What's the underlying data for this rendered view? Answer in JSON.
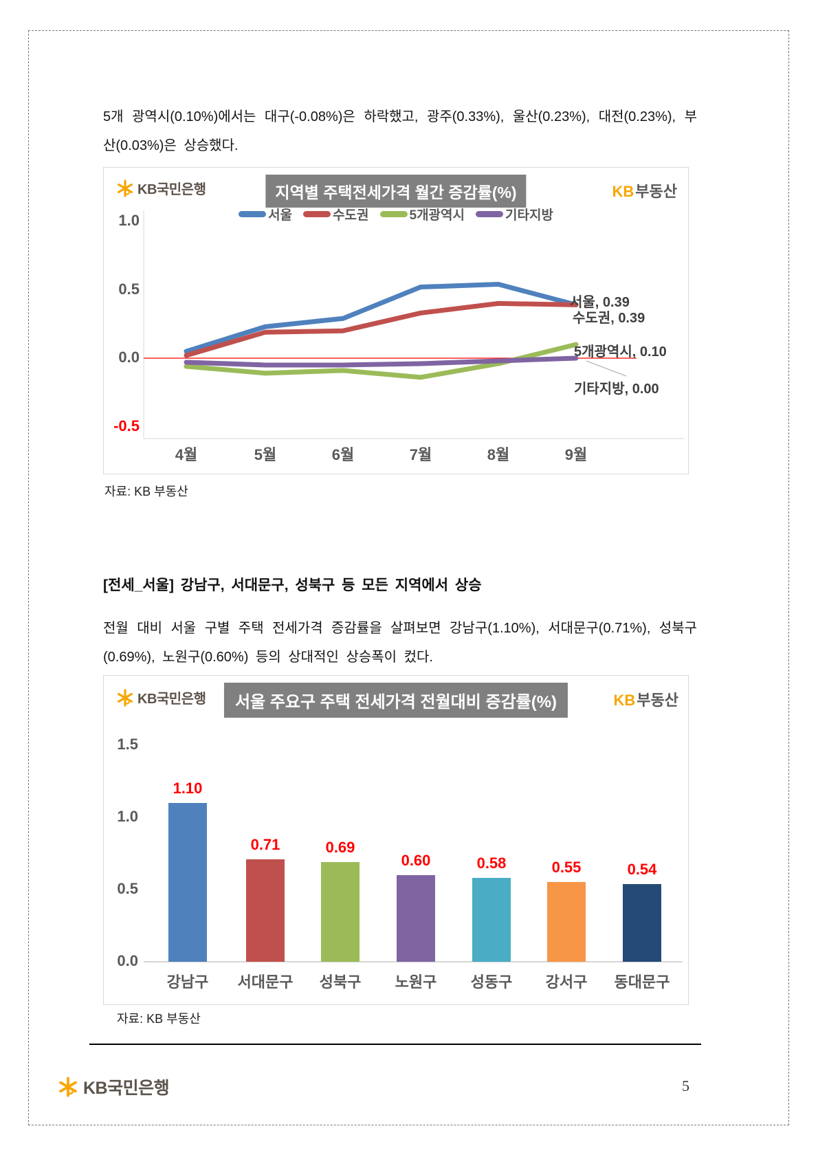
{
  "intro_paragraph": "5개 광역시(0.10%)에서는 대구(-0.08%)은 하락했고, 광주(0.33%), 울산(0.23%), 대전(0.23%), 부산(0.03%)은 상승했다.",
  "section_heading": "[전세_서울] 강남구, 서대문구, 성북구 등 모든 지역에서 상승",
  "body_paragraph": "전월 대비 서울 구별 주택 전세가격 증감률을 살펴보면 강남구(1.10%), 서대문구(0.71%), 성북구(0.69%), 노원구(0.60%) 등의 상대적인 상승폭이 컸다.",
  "source_note": "자료: KB 부동산",
  "page": {
    "number": "5"
  },
  "brand": {
    "bank_logo_text": "KB국민은행",
    "kb_text": "KB",
    "realty_text": "부동산",
    "star_color": "#f9a602",
    "logo_text_color": "#5c544b"
  },
  "chart_data": [
    {
      "id": "regional-jeonse-monthly-line",
      "type": "line",
      "title": "지역별 주택전세가격 월간 증감률(%)",
      "categories": [
        "4월",
        "5월",
        "6월",
        "7월",
        "8월",
        "9월"
      ],
      "series": [
        {
          "name": "서울",
          "color": "#4f81bd",
          "values": [
            0.05,
            0.23,
            0.29,
            0.52,
            0.54,
            0.39
          ]
        },
        {
          "name": "수도권",
          "color": "#c0504d",
          "values": [
            0.02,
            0.19,
            0.2,
            0.33,
            0.4,
            0.39
          ]
        },
        {
          "name": "5개광역시",
          "color": "#9bbb59",
          "values": [
            -0.06,
            -0.11,
            -0.09,
            -0.14,
            -0.04,
            0.1
          ]
        },
        {
          "name": "기타지방",
          "color": "#8064a2",
          "values": [
            -0.03,
            -0.05,
            -0.05,
            -0.04,
            -0.02,
            0.0
          ]
        }
      ],
      "end_labels": [
        "서울, 0.39",
        "수도권, 0.39",
        "5개광역시, 0.10",
        "기타지방, 0.00"
      ],
      "y_ticks": [
        1.0,
        0.5,
        0.0,
        -0.5
      ],
      "y_tick_labels": [
        "1.0",
        "0.5",
        "0.0",
        "-0.5"
      ],
      "negative_tick_color": "#ff0000",
      "ylim": [
        -0.75,
        1.15
      ],
      "zero_line_color": "#ff0000",
      "grid": false,
      "legend_position": "top"
    },
    {
      "id": "seoul-district-jeonse-bar",
      "type": "bar",
      "title": "서울 주요구 주택 전세가격 전월대비 증감률(%)",
      "categories": [
        "강남구",
        "서대문구",
        "성북구",
        "노원구",
        "성동구",
        "강서구",
        "동대문구"
      ],
      "values": [
        1.1,
        0.71,
        0.69,
        0.6,
        0.58,
        0.55,
        0.54
      ],
      "value_labels": [
        "1.10",
        "0.71",
        "0.69",
        "0.60",
        "0.58",
        "0.55",
        "0.54"
      ],
      "bar_colors": [
        "#4f81bd",
        "#c0504d",
        "#9bbb59",
        "#8064a2",
        "#4bacc6",
        "#f79646",
        "#244a77"
      ],
      "y_ticks": [
        1.5,
        1.0,
        0.5,
        0.0
      ],
      "y_tick_labels": [
        "1.5",
        "1.0",
        "0.5",
        "0.0"
      ],
      "ylim": [
        0,
        1.75
      ],
      "value_label_color": "#ff0000",
      "grid": false,
      "legend_position": "none"
    }
  ]
}
